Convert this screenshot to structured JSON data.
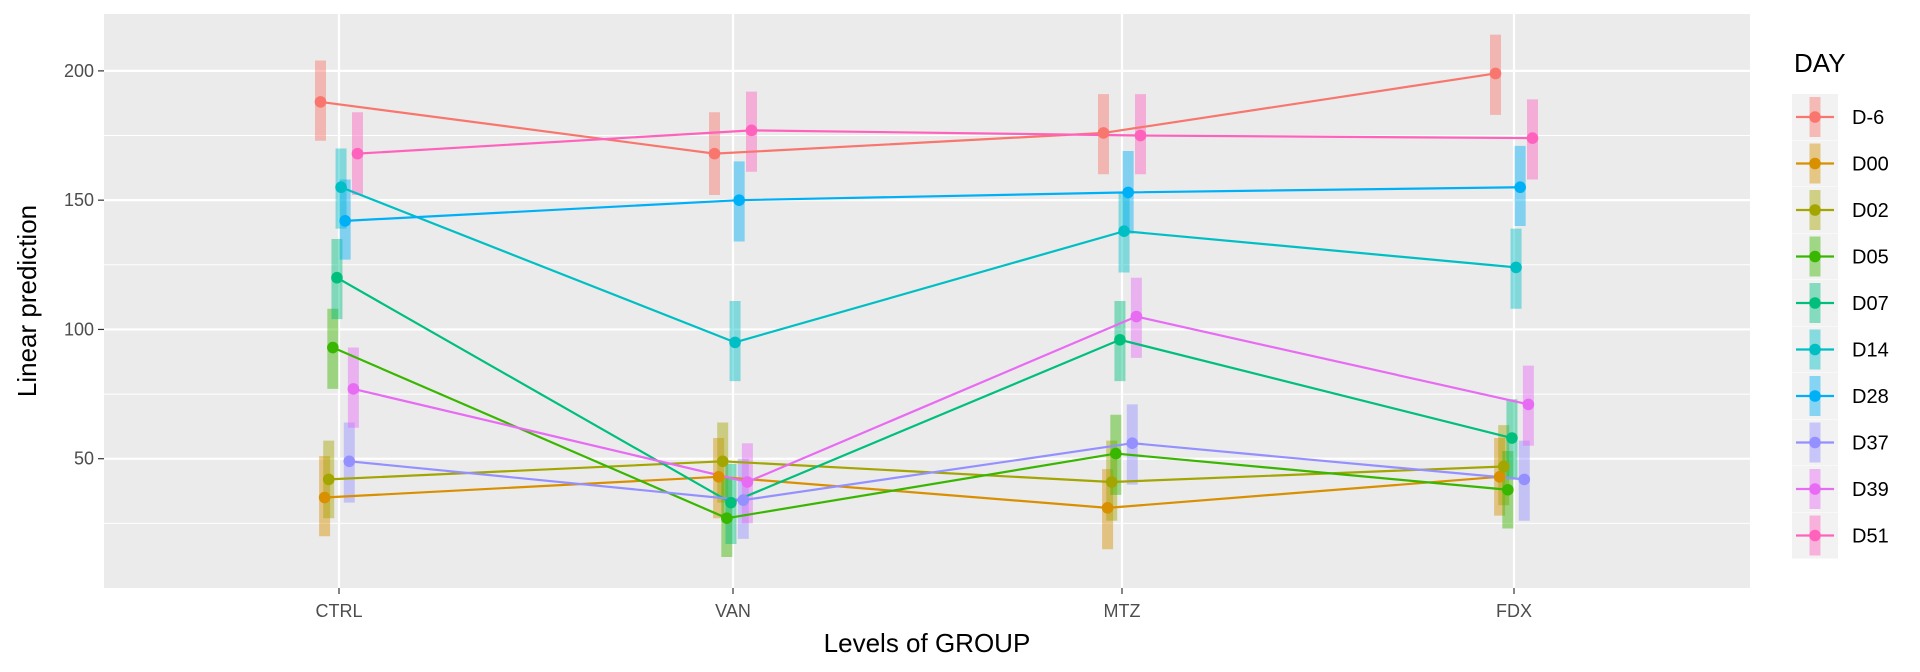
{
  "chart_data": {
    "type": "line",
    "xlabel": "Levels of GROUP",
    "ylabel": "Linear prediction",
    "categories": [
      "CTRL",
      "VAN",
      "MTZ",
      "FDX"
    ],
    "ylim": [
      0,
      222
    ],
    "yticks": [
      50,
      100,
      150,
      200
    ],
    "grid": true,
    "legend": {
      "title": "DAY",
      "position": "right"
    },
    "series": [
      {
        "name": "D-6",
        "color": "#F8766D",
        "values": [
          188,
          168,
          176,
          199
        ],
        "ci": [
          [
            173,
            204
          ],
          [
            152,
            184
          ],
          [
            160,
            191
          ],
          [
            183,
            214
          ]
        ]
      },
      {
        "name": "D00",
        "color": "#D89000",
        "values": [
          35,
          43,
          31,
          43
        ],
        "ci": [
          [
            20,
            51
          ],
          [
            27,
            58
          ],
          [
            15,
            46
          ],
          [
            28,
            58
          ]
        ]
      },
      {
        "name": "D02",
        "color": "#A3A500",
        "values": [
          42,
          49,
          41,
          47
        ],
        "ci": [
          [
            27,
            57
          ],
          [
            33,
            64
          ],
          [
            26,
            57
          ],
          [
            32,
            63
          ]
        ]
      },
      {
        "name": "D05",
        "color": "#39B600",
        "values": [
          93,
          27,
          52,
          38
        ],
        "ci": [
          [
            77,
            108
          ],
          [
            12,
            43
          ],
          [
            36,
            67
          ],
          [
            23,
            53
          ]
        ]
      },
      {
        "name": "D07",
        "color": "#00BF7D",
        "values": [
          120,
          33,
          96,
          58
        ],
        "ci": [
          [
            104,
            135
          ],
          [
            17,
            48
          ],
          [
            80,
            111
          ],
          [
            42,
            73
          ]
        ]
      },
      {
        "name": "D14",
        "color": "#00BFC4",
        "values": [
          155,
          95,
          138,
          124
        ],
        "ci": [
          [
            139,
            170
          ],
          [
            80,
            111
          ],
          [
            122,
            153
          ],
          [
            108,
            139
          ]
        ]
      },
      {
        "name": "D28",
        "color": "#00B0F6",
        "values": [
          142,
          150,
          153,
          155
        ],
        "ci": [
          [
            127,
            158
          ],
          [
            134,
            165
          ],
          [
            137,
            169
          ],
          [
            140,
            171
          ]
        ]
      },
      {
        "name": "D37",
        "color": "#9590FF",
        "values": [
          49,
          34,
          56,
          42
        ],
        "ci": [
          [
            33,
            64
          ],
          [
            19,
            50
          ],
          [
            40,
            71
          ],
          [
            26,
            57
          ]
        ]
      },
      {
        "name": "D39",
        "color": "#E76BF3",
        "values": [
          77,
          41,
          105,
          71
        ],
        "ci": [
          [
            62,
            93
          ],
          [
            25,
            56
          ],
          [
            89,
            120
          ],
          [
            55,
            86
          ]
        ]
      },
      {
        "name": "D51",
        "color": "#FF62BC",
        "values": [
          168,
          177,
          175,
          174
        ],
        "ci": [
          [
            152,
            184
          ],
          [
            161,
            192
          ],
          [
            160,
            191
          ],
          [
            158,
            189
          ]
        ]
      }
    ]
  }
}
